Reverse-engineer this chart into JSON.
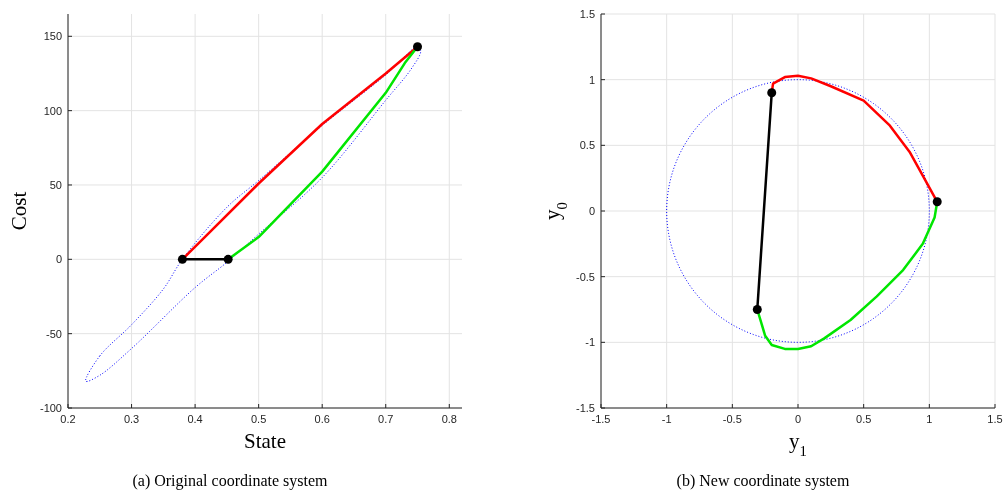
{
  "chart_data": [
    {
      "type": "line",
      "xlabel": "State",
      "ylabel": "Cost",
      "annotations": [
        "(a) Original coordinate system"
      ],
      "xlim": [
        0.2,
        0.82
      ],
      "ylim": [
        -100,
        165
      ],
      "xticks": [
        0.2,
        0.3,
        0.4,
        0.5,
        0.6,
        0.7,
        0.8
      ],
      "yticks": [
        -100,
        -50,
        0,
        50,
        100,
        150
      ],
      "grid": true,
      "series": [
        {
          "color": "#ff0000",
          "x": [
            0.38,
            0.42,
            0.5,
            0.6,
            0.7,
            0.75
          ],
          "values": [
            0,
            17,
            51,
            91,
            125,
            143
          ]
        },
        {
          "color": "#00e600",
          "x": [
            0.452,
            0.5,
            0.6,
            0.7,
            0.73,
            0.75
          ],
          "values": [
            0,
            15,
            59,
            112,
            132,
            143
          ]
        },
        {
          "color": "#000000",
          "marker": "circle",
          "x": [
            0.38,
            0.452
          ],
          "values": [
            0,
            0
          ]
        },
        {
          "type": "scatter",
          "color": "#000000",
          "marker": "circle",
          "x": [
            0.75
          ],
          "values": [
            143
          ]
        }
      ]
    },
    {
      "type": "line",
      "xlabel": "y$_{1}$",
      "ylabel": "y$_{0}$",
      "annotations": [
        "(b) New coordinate system"
      ],
      "xlim": [
        -1.5,
        1.5
      ],
      "ylim": [
        -1.5,
        1.5
      ],
      "xticks": [
        -1.5,
        -1,
        -0.5,
        0,
        0.5,
        1,
        1.5
      ],
      "yticks": [
        -1.5,
        -1,
        -0.5,
        0,
        0.5,
        1,
        1.5
      ],
      "grid": true,
      "series": [
        {
          "color": "#ff0000",
          "x": [
            -0.2,
            -0.19,
            -0.1,
            0,
            0.1,
            0.25,
            0.5,
            0.7,
            0.85,
            0.95,
            1.06
          ],
          "values": [
            0.9,
            0.97,
            1.02,
            1.03,
            1.01,
            0.95,
            0.84,
            0.65,
            0.45,
            0.27,
            0.07
          ]
        },
        {
          "color": "#00e600",
          "x": [
            1.06,
            1.04,
            0.95,
            0.8,
            0.6,
            0.4,
            0.2,
            0.1,
            0,
            -0.1,
            -0.2,
            -0.25,
            -0.31
          ],
          "values": [
            0.07,
            -0.05,
            -0.25,
            -0.45,
            -0.65,
            -0.83,
            -0.97,
            -1.03,
            -1.05,
            -1.05,
            -1.02,
            -0.95,
            -0.75
          ]
        },
        {
          "color": "#000000",
          "marker": "circle",
          "x": [
            -0.31,
            -0.2
          ],
          "values": [
            -0.75,
            0.9
          ]
        },
        {
          "type": "scatter",
          "color": "#000000",
          "marker": "circle",
          "x": [
            1.06
          ],
          "values": [
            0.07
          ]
        }
      ]
    }
  ]
}
